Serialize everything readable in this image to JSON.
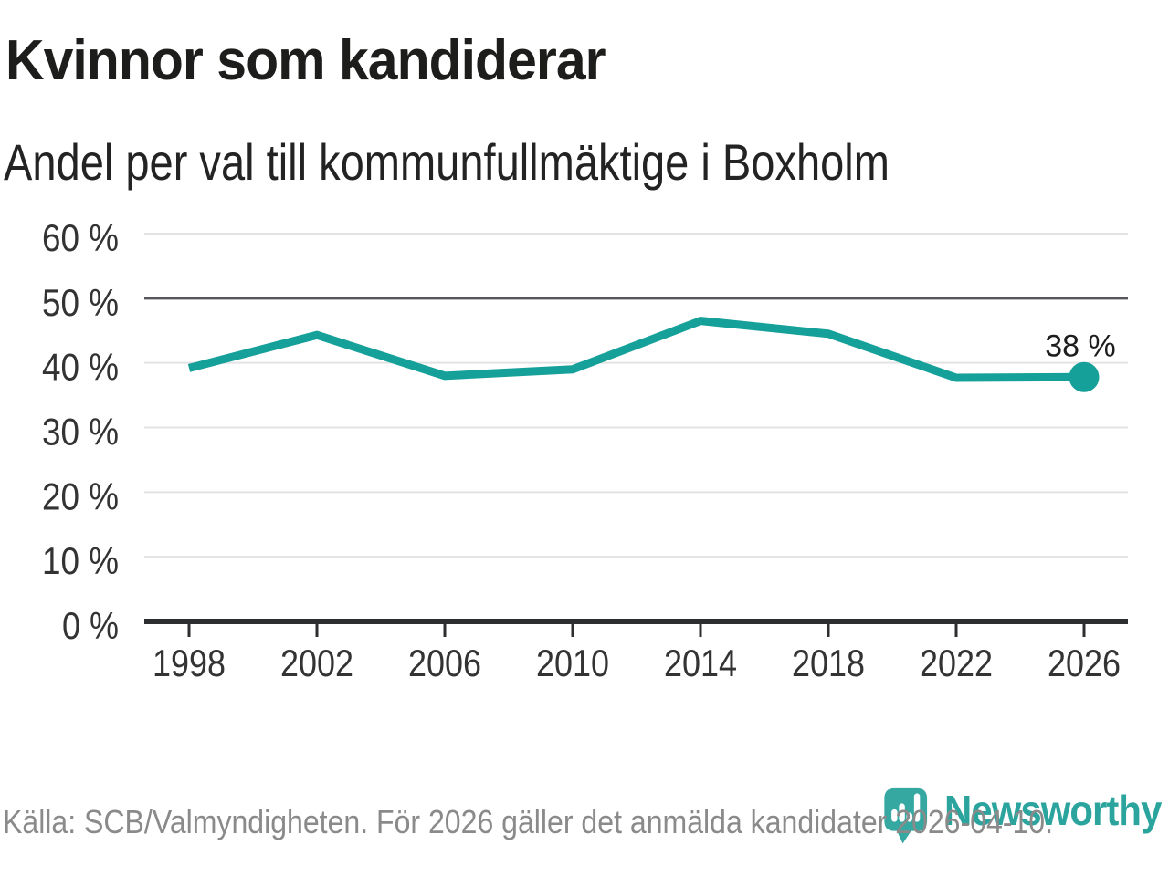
{
  "header": {
    "title": "Kvinnor som kandiderar",
    "subtitle": "Andel per val till kommunfullmäktige i Boxholm"
  },
  "chart_data": {
    "type": "line",
    "title": "Kvinnor som kandiderar",
    "subtitle": "Andel per val till kommunfullmäktige i Boxholm",
    "categories": [
      "1998",
      "2002",
      "2006",
      "2010",
      "2014",
      "2018",
      "2022",
      "2026"
    ],
    "values": [
      39.2,
      44.3,
      38.0,
      39.0,
      46.5,
      44.5,
      37.7,
      37.8
    ],
    "ylim": [
      0,
      60
    ],
    "yticks": [
      0,
      10,
      20,
      30,
      40,
      50,
      60
    ],
    "ytick_suffix": " %",
    "grid": "horizontal",
    "emphasized_gridline": 50,
    "last_point_label": "38 %",
    "legend": "none"
  },
  "footer": {
    "source": "Källa: SCB/Valmyndigheten. För 2026 gäller det anmälda kandidater 2026-04-10.",
    "brand": "Newsworthy"
  },
  "colors": {
    "line": "#16a09a",
    "dot": "#16a09a",
    "logo": "#35a8a2",
    "brand_text": "#2ba49e",
    "grid_light": "#e3e3e3",
    "grid_emphasis": "#55565c",
    "axis": "#2d2e30",
    "tick_label": "#333333",
    "annotation": "#1d1d1d",
    "title": "#1d1d1b",
    "source_text": "#8a8a8a"
  },
  "icons": {
    "logo_icon": "newsworthy-chart-bubble-icon"
  }
}
